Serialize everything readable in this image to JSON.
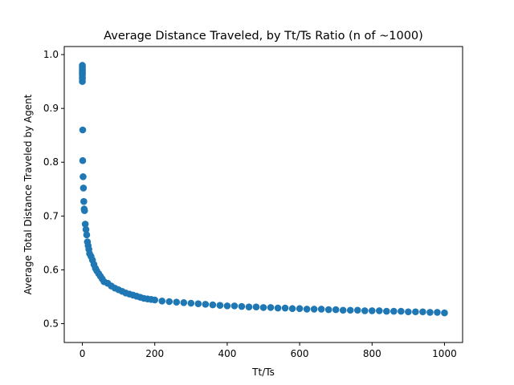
{
  "chart_data": {
    "type": "scatter",
    "title": "Average Distance Traveled, by Tt/Ts Ratio (n of ~1000)",
    "xlabel": "Tt/Ts",
    "ylabel": "Average Total Distance Traveled by Agent",
    "xlim": [
      -50,
      1050
    ],
    "ylim": [
      0.465,
      1.015
    ],
    "xticks": [
      0,
      200,
      400,
      600,
      800,
      1000
    ],
    "yticks": [
      0.5,
      0.6,
      0.7,
      0.8,
      0.9,
      1.0
    ],
    "xtick_labels": [
      "0",
      "200",
      "400",
      "600",
      "800",
      "1000"
    ],
    "ytick_labels": [
      "0.5",
      "0.6",
      "0.7",
      "0.8",
      "0.9",
      "1.0"
    ],
    "grid": false,
    "legend": "none",
    "series": [
      {
        "color": "#1f77b4",
        "x": [
          0,
          0,
          0,
          0,
          0,
          0,
          0,
          0,
          0,
          0,
          0,
          1,
          1,
          2,
          3,
          4,
          5,
          6,
          8,
          10,
          12,
          14,
          16,
          18,
          20,
          24,
          28,
          32,
          36,
          40,
          45,
          50,
          55,
          60,
          70,
          80,
          90,
          100,
          110,
          120,
          130,
          140,
          150,
          160,
          170,
          180,
          190,
          200,
          220,
          240,
          260,
          280,
          300,
          320,
          340,
          360,
          380,
          400,
          420,
          440,
          460,
          480,
          500,
          520,
          540,
          560,
          580,
          600,
          620,
          640,
          660,
          680,
          700,
          720,
          740,
          760,
          780,
          800,
          820,
          840,
          860,
          880,
          900,
          920,
          940,
          960,
          980,
          1000
        ],
        "y": [
          0.98,
          0.977,
          0.975,
          0.972,
          0.97,
          0.967,
          0.965,
          0.962,
          0.958,
          0.955,
          0.95,
          0.86,
          0.803,
          0.773,
          0.752,
          0.727,
          0.713,
          0.71,
          0.685,
          0.675,
          0.665,
          0.652,
          0.645,
          0.638,
          0.63,
          0.625,
          0.618,
          0.61,
          0.603,
          0.598,
          0.593,
          0.588,
          0.583,
          0.578,
          0.575,
          0.57,
          0.566,
          0.563,
          0.56,
          0.557,
          0.555,
          0.553,
          0.551,
          0.549,
          0.547,
          0.546,
          0.545,
          0.544,
          0.542,
          0.541,
          0.54,
          0.539,
          0.538,
          0.537,
          0.536,
          0.535,
          0.534,
          0.533,
          0.533,
          0.532,
          0.531,
          0.531,
          0.53,
          0.53,
          0.529,
          0.529,
          0.528,
          0.528,
          0.527,
          0.527,
          0.527,
          0.526,
          0.526,
          0.525,
          0.525,
          0.525,
          0.524,
          0.524,
          0.524,
          0.523,
          0.523,
          0.523,
          0.522,
          0.522,
          0.522,
          0.521,
          0.521,
          0.52
        ]
      }
    ]
  }
}
